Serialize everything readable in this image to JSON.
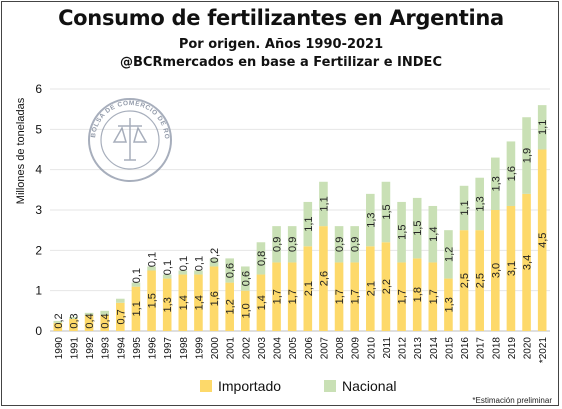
{
  "title": "Consumo de fertilizantes en Argentina",
  "subtitle": "Por origen. Años 1990-2021",
  "source": "@BCRmercados en base a Fertilizar e INDEC",
  "note": "*Estimación preliminar",
  "seal_text": "BOLSA DE COMERCIO DE ROSARIO",
  "colors": {
    "importado": "#FDD96A",
    "nacional": "#C9E0B5"
  },
  "chart_data": {
    "type": "bar",
    "stacked": true,
    "ylabel": "Millones de toneladas",
    "ylim": [
      0,
      6
    ],
    "yticks": [
      0,
      1,
      2,
      3,
      4,
      5,
      6
    ],
    "legend_position": "bottom",
    "categories": [
      "1990",
      "1991",
      "1992",
      "1993",
      "1994",
      "1995",
      "1996",
      "1997",
      "1998",
      "1999",
      "2000",
      "2001",
      "2002",
      "2003",
      "2004",
      "2005",
      "2006",
      "2007",
      "2008",
      "2009",
      "2010",
      "2011",
      "2012",
      "2013",
      "2014",
      "2015",
      "2016",
      "2017",
      "2018",
      "2019",
      "2020",
      "*2021"
    ],
    "series": [
      {
        "name": "Importado",
        "values": [
          0.2,
          0.3,
          0.4,
          0.4,
          0.7,
          1.1,
          1.5,
          1.3,
          1.4,
          1.4,
          1.6,
          1.2,
          1.0,
          1.4,
          1.7,
          1.7,
          2.1,
          2.6,
          1.7,
          1.7,
          2.1,
          2.2,
          1.7,
          1.8,
          1.7,
          1.3,
          2.5,
          2.5,
          3.0,
          3.1,
          3.4,
          4.5
        ],
        "labels": [
          "0,2",
          "0,3",
          "0,4",
          "0,4",
          "0,7",
          "1,1",
          "1,5",
          "1,3",
          "1,4",
          "1,4",
          "1,6",
          "1,2",
          "1,0",
          "1,4",
          "1,7",
          "1,7",
          "2,1",
          "2,6",
          "1,7",
          "1,7",
          "2,1",
          "2,2",
          "1,7",
          "1,8",
          "1,7",
          "1,3",
          "2,5",
          "2,5",
          "3,0",
          "3,1",
          "3,4",
          "4,5"
        ]
      },
      {
        "name": "Nacional",
        "values": [
          0.05,
          0.05,
          0.05,
          0.1,
          0.1,
          0.1,
          0.1,
          0.1,
          0.1,
          0.1,
          0.2,
          0.6,
          0.6,
          0.8,
          0.9,
          0.9,
          1.1,
          1.1,
          0.9,
          0.9,
          1.3,
          1.5,
          1.5,
          1.5,
          1.4,
          1.2,
          1.1,
          1.3,
          1.3,
          1.6,
          1.9,
          1.1
        ],
        "labels": [
          "",
          "",
          "",
          "",
          "",
          "0,1",
          "0,1",
          "0,1",
          "0,1",
          "0,1",
          "0,2",
          "0,6",
          "0,6",
          "0,8",
          "0,9",
          "0,9",
          "1,1",
          "1,1",
          "0,9",
          "0,9",
          "1,3",
          "1,5",
          "1,5",
          "1,5",
          "1,4",
          "1,2",
          "1,1",
          "1,3",
          "1,3",
          "1,6",
          "1,9",
          "1,1"
        ]
      }
    ]
  }
}
